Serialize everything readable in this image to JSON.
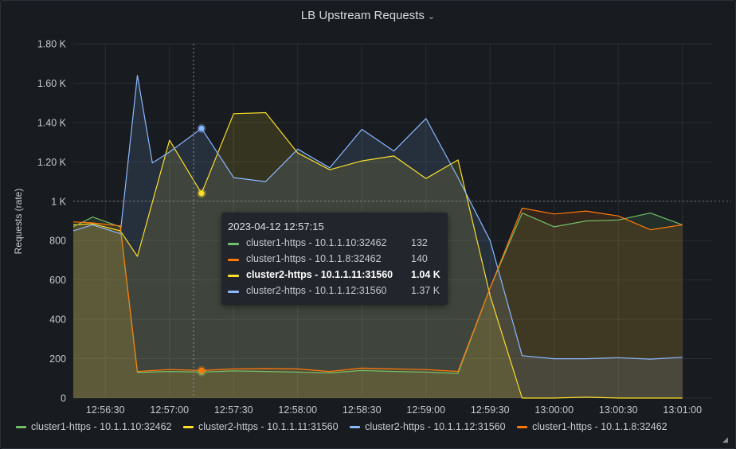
{
  "panel": {
    "title": "LB Upstream Requests",
    "menu_icon": "chevron-down-icon"
  },
  "tooltip": {
    "time": "2023-04-12 12:57:15",
    "rows": [
      {
        "name": "cluster1-https - 10.1.1.10:32462",
        "value": "132",
        "color": "#73bf69",
        "bold": false
      },
      {
        "name": "cluster1-https - 10.1.1.8:32462",
        "value": "140",
        "color": "#ff780a",
        "bold": false
      },
      {
        "name": "cluster2-https - 10.1.1.11:31560",
        "value": "1.04 K",
        "color": "#fade2a",
        "bold": true
      },
      {
        "name": "cluster2-https - 10.1.1.12:31560",
        "value": "1.37 K",
        "color": "#8ab8ff",
        "bold": false
      }
    ]
  },
  "legend": [
    {
      "label": "cluster1-https - 10.1.1.10:32462",
      "color": "#73bf69"
    },
    {
      "label": "cluster2-https - 10.1.1.11:31560",
      "color": "#fade2a"
    },
    {
      "label": "cluster2-https - 10.1.1.12:31560",
      "color": "#8ab8ff"
    },
    {
      "label": "cluster1-https - 10.1.1.8:32462",
      "color": "#ff780a"
    }
  ],
  "chart_data": {
    "type": "area",
    "ylabel": "Requests (rate)",
    "ylim": [
      0,
      1800
    ],
    "yticks": [
      {
        "v": 0,
        "label": "0"
      },
      {
        "v": 200,
        "label": "200"
      },
      {
        "v": 400,
        "label": "400"
      },
      {
        "v": 600,
        "label": "600"
      },
      {
        "v": 800,
        "label": "800"
      },
      {
        "v": 1000,
        "label": "1 K"
      },
      {
        "v": 1200,
        "label": "1.20 K"
      },
      {
        "v": 1400,
        "label": "1.40 K"
      },
      {
        "v": 1600,
        "label": "1.60 K"
      },
      {
        "v": 1800,
        "label": "1.80 K"
      }
    ],
    "xticks": [
      "12:56:30",
      "12:57:00",
      "12:57:30",
      "12:58:00",
      "12:58:30",
      "12:59:00",
      "12:59:30",
      "13:00:00",
      "13:00:30",
      "13:01:00"
    ],
    "x": [
      "12:56:15",
      "12:56:22.5",
      "12:56:30",
      "12:56:37.5",
      "12:56:45",
      "12:56:52.5",
      "12:57:00",
      "12:57:07.5",
      "12:57:15",
      "12:57:22.5",
      "12:57:30",
      "12:57:37.5",
      "12:57:45",
      "12:57:52.5",
      "12:58:00",
      "12:58:07.5",
      "12:58:15",
      "12:58:22.5",
      "12:58:30",
      "12:58:37.5",
      "12:58:45",
      "12:58:52.5",
      "12:59:00",
      "12:59:07.5",
      "12:59:15",
      "12:59:22.5",
      "12:59:30",
      "12:59:37.5",
      "12:59:45",
      "12:59:52.5",
      "13:00:00",
      "13:00:07.5",
      "13:00:15",
      "13:00:22.5",
      "13:00:30",
      "13:00:37.5",
      "13:00:45",
      "13:00:52.5",
      "13:01:00"
    ],
    "series": [
      {
        "name": "cluster1-https - 10.1.1.10:32462",
        "color": "#73bf69",
        "x": [
          "12:56:15",
          "12:56:24",
          "12:56:37",
          "12:56:45",
          "12:57:00",
          "12:57:15",
          "12:57:30",
          "12:57:45",
          "12:58:00",
          "12:58:15",
          "12:58:30",
          "12:58:45",
          "12:59:00",
          "12:59:15",
          "12:59:30",
          "12:59:45",
          "13:00:00",
          "13:00:15",
          "13:00:30",
          "13:00:45",
          "13:01:00"
        ],
        "values": [
          870,
          920,
          870,
          130,
          135,
          132,
          138,
          135,
          132,
          128,
          140,
          135,
          132,
          125,
          560,
          940,
          870,
          900,
          905,
          940,
          880
        ]
      },
      {
        "name": "cluster1-https - 10.1.1.8:32462",
        "color": "#ff780a",
        "x": [
          "12:56:15",
          "12:56:24",
          "12:56:37",
          "12:56:45",
          "12:57:00",
          "12:57:15",
          "12:57:30",
          "12:57:45",
          "12:58:00",
          "12:58:15",
          "12:58:30",
          "12:58:45",
          "12:59:00",
          "12:59:15",
          "12:59:30",
          "12:59:45",
          "13:00:00",
          "13:00:15",
          "13:00:30",
          "13:00:45",
          "13:01:00"
        ],
        "values": [
          895,
          890,
          875,
          135,
          145,
          140,
          148,
          150,
          148,
          135,
          152,
          148,
          145,
          135,
          560,
          965,
          935,
          950,
          925,
          855,
          880
        ]
      },
      {
        "name": "cluster2-https - 10.1.1.11:31560",
        "color": "#fade2a",
        "x": [
          "12:56:15",
          "12:56:24",
          "12:56:37",
          "12:56:45",
          "12:57:00",
          "12:57:15",
          "12:57:30",
          "12:57:45",
          "12:58:00",
          "12:58:15",
          "12:58:30",
          "12:58:45",
          "12:59:00",
          "12:59:15",
          "12:59:30",
          "12:59:45",
          "13:00:00",
          "13:00:15",
          "13:00:30",
          "13:00:45",
          "13:01:00"
        ],
        "values": [
          880,
          885,
          850,
          720,
          1310,
          1040,
          1445,
          1450,
          1245,
          1160,
          1205,
          1230,
          1115,
          1210,
          520,
          0,
          0,
          5,
          0,
          0,
          0
        ]
      },
      {
        "name": "cluster2-https - 10.1.1.12:31560",
        "color": "#8ab8ff",
        "x": [
          "12:56:15",
          "12:56:24",
          "12:56:37",
          "12:56:45",
          "12:56:52",
          "12:57:00",
          "12:57:15",
          "12:57:30",
          "12:57:45",
          "12:58:00",
          "12:58:15",
          "12:58:30",
          "12:58:45",
          "12:59:00",
          "12:59:15",
          "12:59:30",
          "12:59:45",
          "13:00:00",
          "13:00:15",
          "13:00:30",
          "13:00:45",
          "13:01:00"
        ],
        "values": [
          850,
          880,
          835,
          1640,
          1195,
          1250,
          1370,
          1120,
          1100,
          1265,
          1170,
          1365,
          1255,
          1420,
          1120,
          800,
          215,
          200,
          200,
          205,
          198,
          207
        ]
      }
    ],
    "threshold_line": 1000,
    "crosshair_x": "12:57:15",
    "grid": true
  }
}
